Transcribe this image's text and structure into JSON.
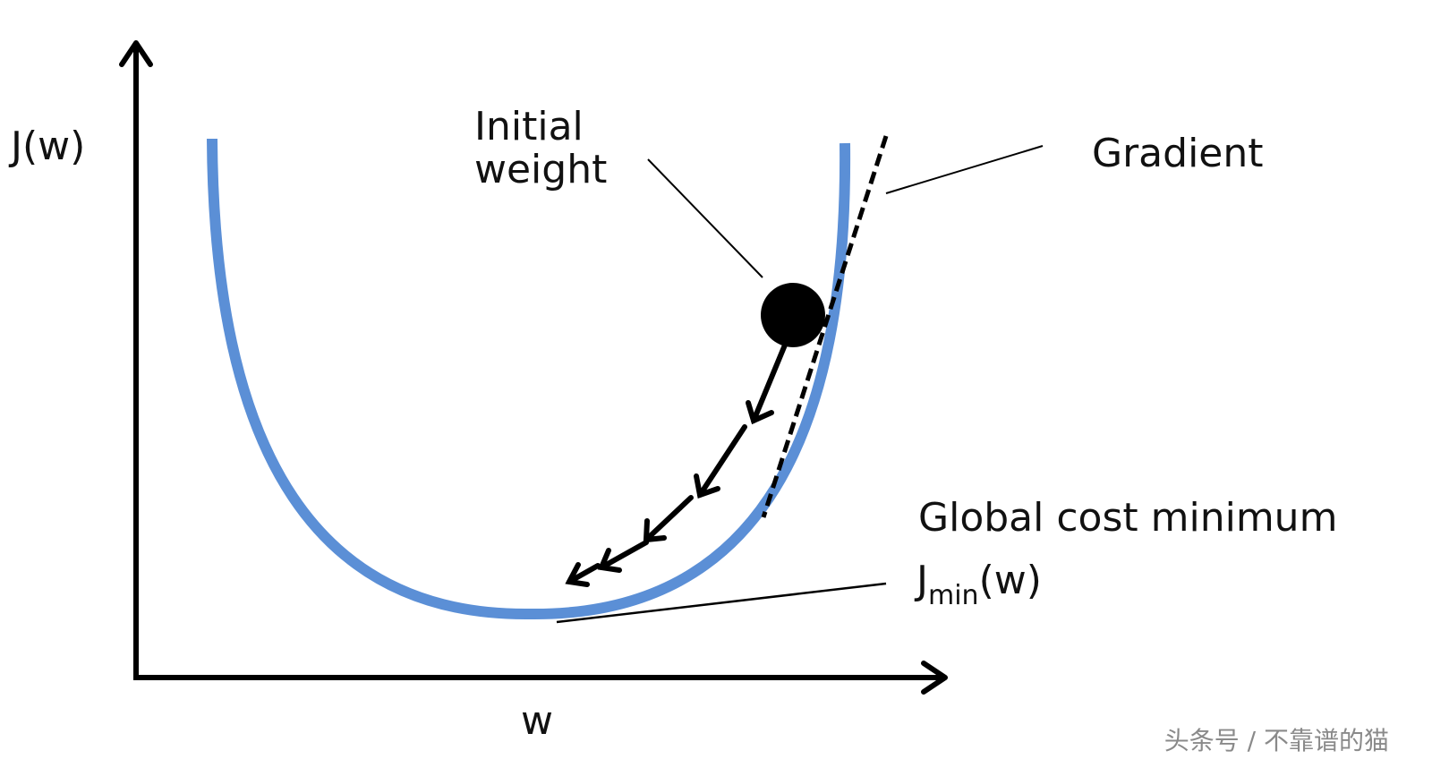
{
  "labels": {
    "y_axis": "J(w)",
    "x_axis": "w",
    "initial_weight_line1": "Initial",
    "initial_weight_line2": "weight",
    "gradient": "Gradient",
    "global_min": "Global cost minimum",
    "jmin_main": "J",
    "jmin_sub": "min",
    "jmin_tail": "(w)"
  },
  "watermark": "头条号 / 不靠谱的猫",
  "colors": {
    "curve": "#5b8fd6",
    "ink": "#000000",
    "watermark": "#8a8a8a"
  },
  "icons": {
    "y_axis_arrow": "arrow-up-icon",
    "x_axis_arrow": "arrow-right-icon",
    "step_arrows": "arrow-down-left-icon"
  }
}
